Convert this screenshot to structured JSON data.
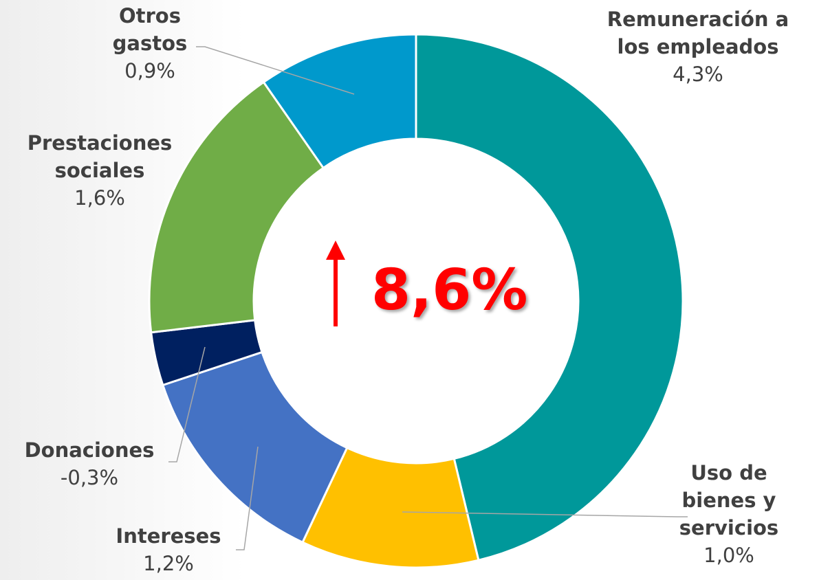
{
  "chart_data": {
    "type": "donut",
    "categories": [
      "Remuneración a los empleados",
      "Uso de bienes y servicios",
      "Intereses",
      "Donaciones",
      "Prestaciones sociales",
      "Otros gastos"
    ],
    "values": [
      4.3,
      1.0,
      1.2,
      -0.3,
      1.6,
      0.9
    ],
    "value_labels": [
      "4,3%",
      "1,0%",
      "1,2%",
      "-0,3%",
      "1,6%",
      "0,9%"
    ],
    "colors": [
      "#00989a",
      "#ffc000",
      "#4472c4",
      "#002060",
      "#70ad47",
      "#0099cc"
    ],
    "center_label": "8,6%"
  }
}
